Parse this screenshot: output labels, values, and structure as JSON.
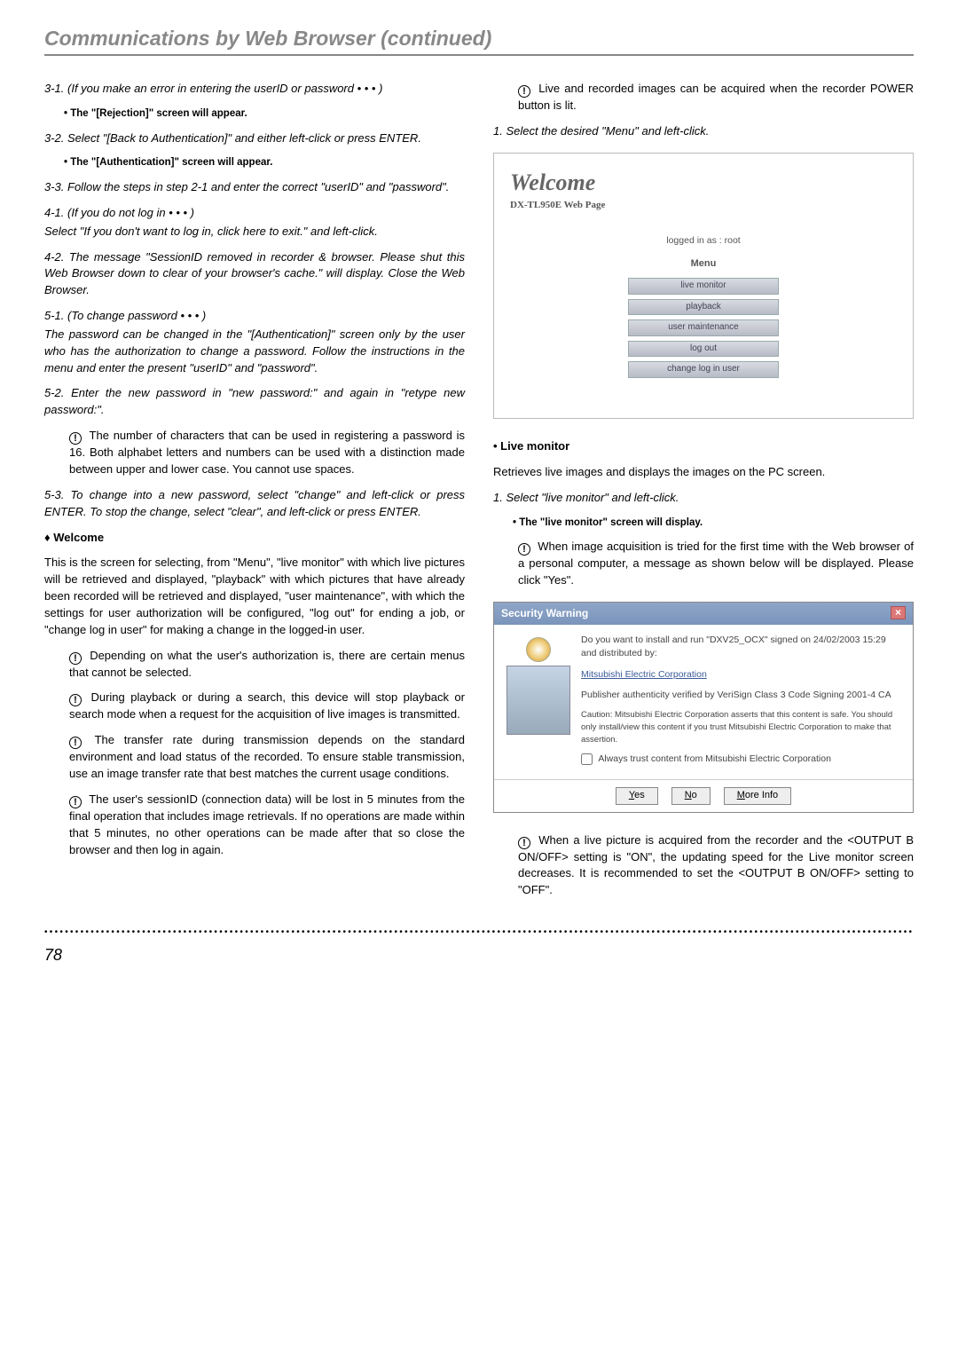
{
  "header": {
    "title": "Communications by Web Browser (continued)"
  },
  "left": {
    "p31": "3-1. (If you make an error in entering the userID or password • • • )",
    "p31b": "• The \"[Rejection]\" screen will appear.",
    "p32": "3-2. Select \"[Back to Authentication]\" and either left-click or press ENTER.",
    "p32b": "• The \"[Authentication]\" screen will appear.",
    "p33": "3-3. Follow the steps in step 2-1 and enter the correct \"userID\" and \"password\".",
    "p41a": "4-1. (If you do not log in • • • )",
    "p41b": "Select \"If you don't want to log in, click here to exit.\" and left-click.",
    "p42": "4-2. The message \"SessionID removed in recorder & browser. Please shut this Web Browser down to clear of your browser's cache.\" will display. Close the Web Browser.",
    "p51a": "5-1. (To change password • • • )",
    "p51b": "The password can be changed in the \"[Authentication]\" screen only by the user who has  the authorization to change a password. Follow the instructions in the menu and enter the present \"userID\" and \"password\".",
    "p52": "5-2. Enter the new password in \"new password:\" and again in \"retype new password:\".",
    "note1": "The number of characters that can be used in registering a password is 16. Both alphabet letters and numbers can be used with a distinction made between upper and lower case. You cannot use spaces.",
    "p53": "5-3. To change into a new password, select \"change\" and left-click or press ENTER.  To stop the change, select \"clear\", and left-click or press ENTER.",
    "welcomeHead": "Welcome",
    "welcomeBody": "This is the screen for selecting, from \"Menu\", \"live monitor\" with which live pictures will be retrieved and displayed, \"playback\" with which pictures that have already been recorded will be retrieved and displayed, \"user maintenance\", with which the settings for user authorization will be configured, \"log out\" for ending a job, or \"change log in user\" for making a change in the logged-in user.",
    "note2": "Depending on what the user's authorization is, there are certain menus that cannot be selected.",
    "note3": "During playback or during a search, this device will stop playback or search mode when a request for the acquisition of live images is transmitted.",
    "note4": "The transfer rate during transmission depends on the standard environment and load status of the recorded. To ensure stable transmission, use an image transfer rate that best matches the current usage conditions.",
    "note5": "The user's sessionID (connection data) will be lost in 5 minutes from the final operation that includes image retrievals. If no operations are made within that 5 minutes, no other operations can be made after that so close the browser and then log in again."
  },
  "right": {
    "noteTop": "Live and recorded images can be acquired when the recorder POWER button is lit.",
    "step1": "1. Select the desired \"Menu\" and left-click.",
    "welcome": {
      "logo": "Welcome",
      "sub": "DX-TL950E Web Page",
      "logged": "logged in as : root",
      "menu": "Menu",
      "items": [
        "live monitor",
        "playback",
        "user maintenance",
        "log out",
        "change log in user"
      ]
    },
    "liveHead": "• Live monitor",
    "liveBody": "Retrieves live images and displays the images on the PC screen.",
    "liveStep": "1. Select \"live monitor\" and left-click.",
    "liveStepB": "• The \"live monitor\" screen will display.",
    "note6": "When image acquisition is tried for the first time with the Web browser of a personal computer, a message as shown below will be displayed. Please click \"Yes\".",
    "sec": {
      "title": "Security Warning",
      "l1": "Do you want to install and run \"DXV25_OCX\" signed on 24/02/2003 15:29 and distributed by:",
      "l2": "Mitsubishi Electric Corporation",
      "l3": "Publisher authenticity verified by VeriSign Class 3 Code Signing 2001-4 CA",
      "l4": "Caution: Mitsubishi Electric Corporation asserts that this content is safe.  You should only install/view this content if you trust Mitsubishi Electric Corporation to make that assertion.",
      "chk": "Always trust content from Mitsubishi Electric Corporation",
      "yes": "Yes",
      "no": "No",
      "more": "More Info"
    },
    "note7": "When a live picture is acquired from the recorder and the <OUTPUT B ON/OFF> setting is \"ON\", the updating speed for the Live monitor screen decreases. It is recommended to set the <OUTPUT B ON/OFF> setting to \"OFF\"."
  },
  "pageNumber": "78"
}
